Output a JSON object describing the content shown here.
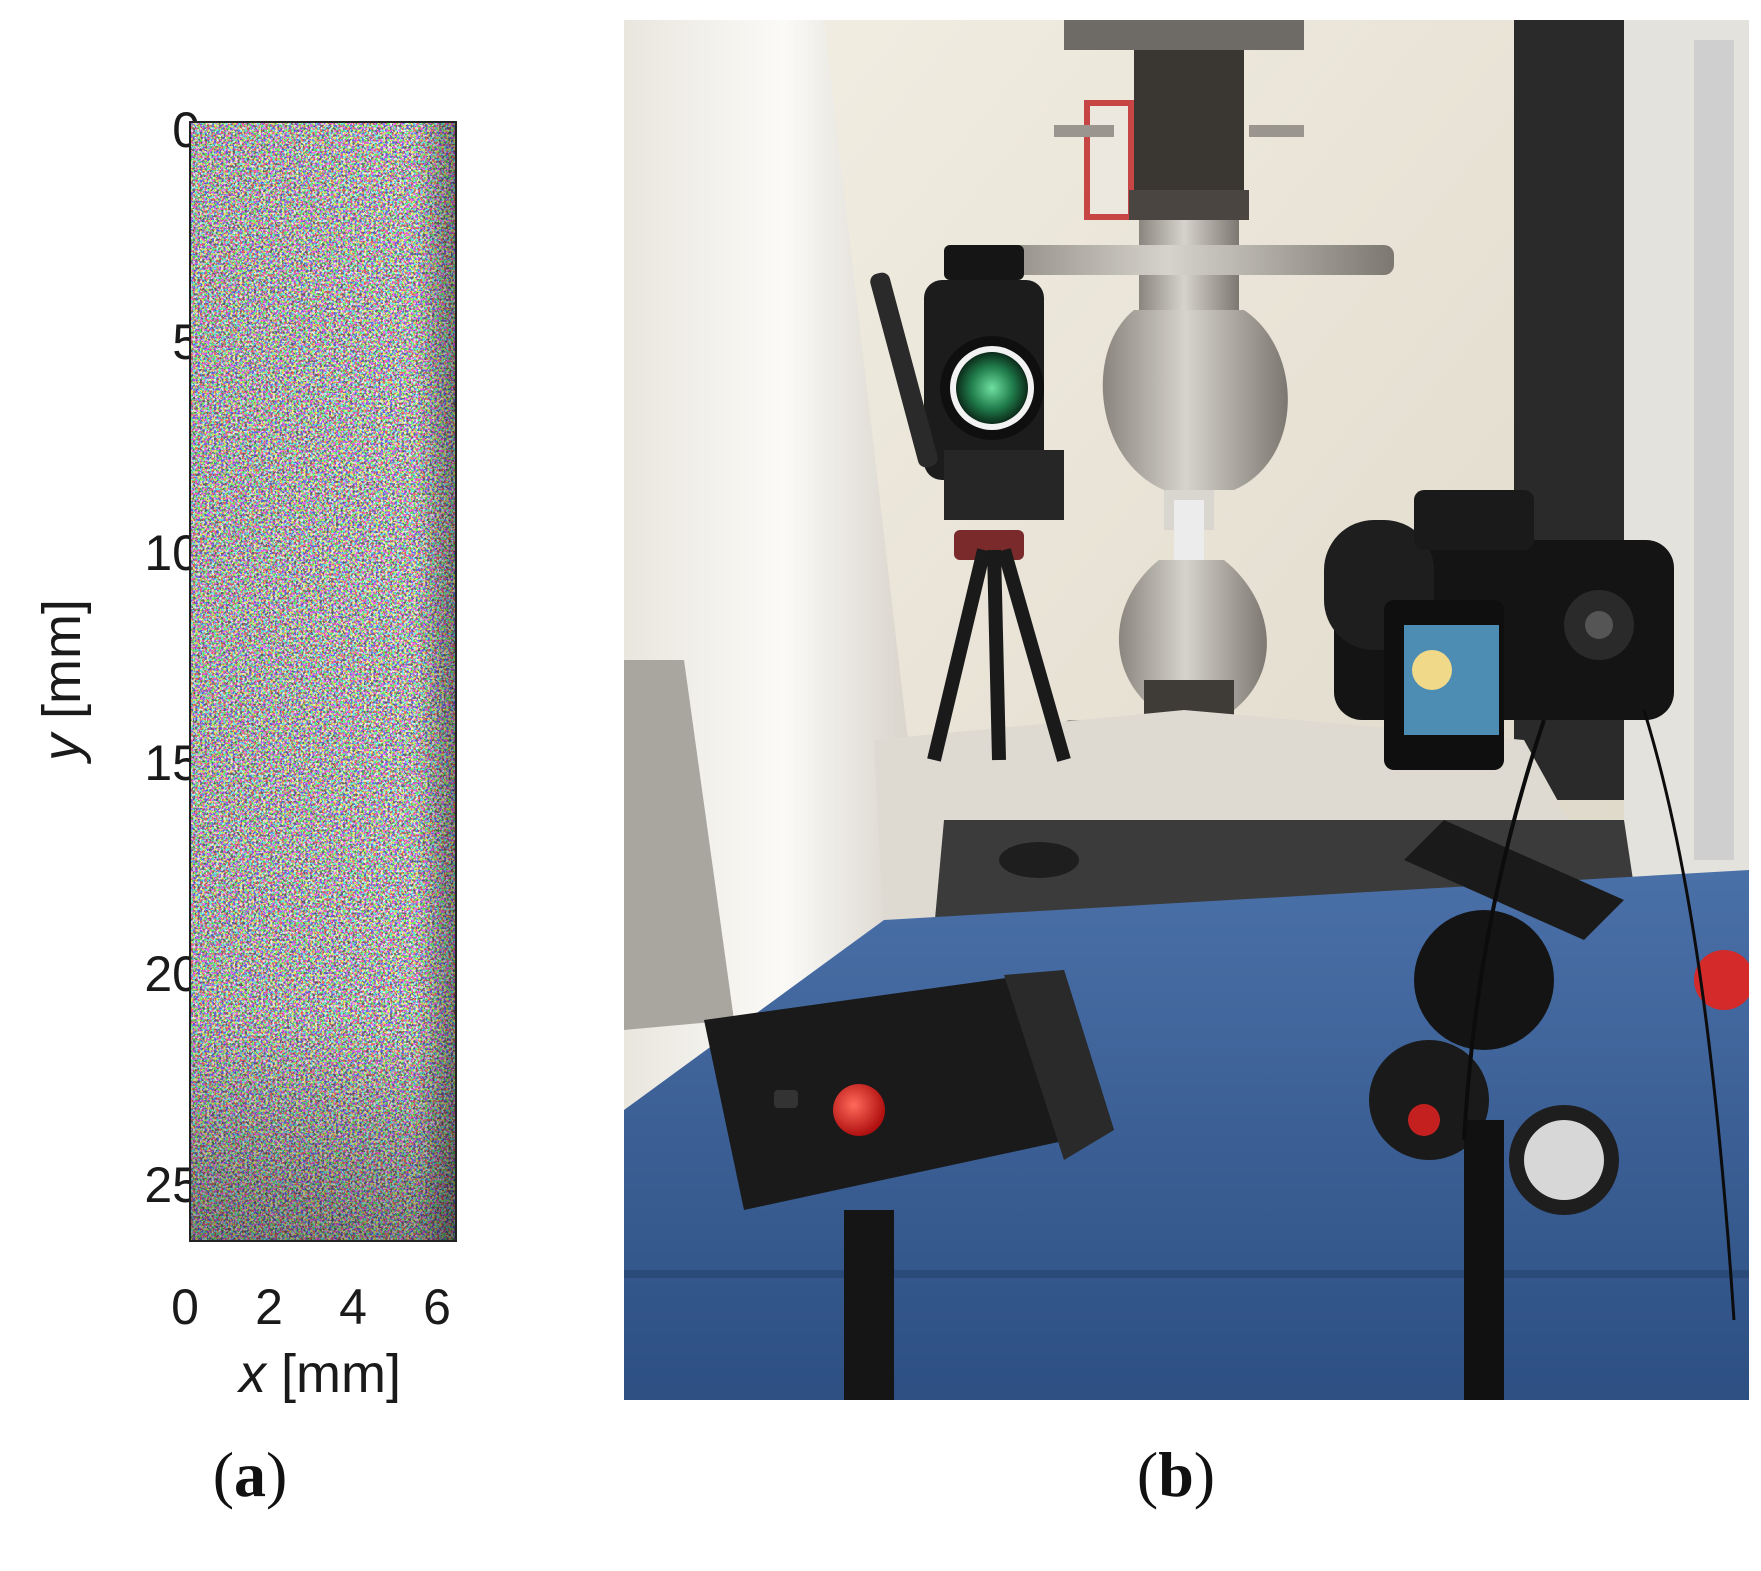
{
  "panel_a": {
    "caption_open": "(",
    "caption_letter": "a",
    "caption_close": ")",
    "y_axis_label_var": "y",
    "y_axis_label_unit": " [mm]",
    "x_axis_label_var": "x",
    "x_axis_label_unit": " [mm]",
    "y_ticks": [
      "0",
      "5",
      "10",
      "15",
      "20",
      "25"
    ],
    "x_ticks": [
      "0",
      "2",
      "4",
      "6"
    ],
    "y_range_mm": [
      0,
      26.3
    ],
    "x_range_mm": [
      0,
      6.4
    ],
    "image": "speckle-pattern"
  },
  "panel_b": {
    "caption_open": "(",
    "caption_letter": "b",
    "caption_close": ")",
    "image": "photo-tensile-test-setup-with-cameras-and-light"
  },
  "colors": {
    "machine_blue": "#3a5f95",
    "wall": "#ebe6da",
    "grip_steel": "#a8a49c",
    "black_equipment": "#1a1a1a",
    "record_red": "#d62020",
    "lens_green": "#1f7a4a",
    "screen_blue": "#4d8cb3"
  }
}
